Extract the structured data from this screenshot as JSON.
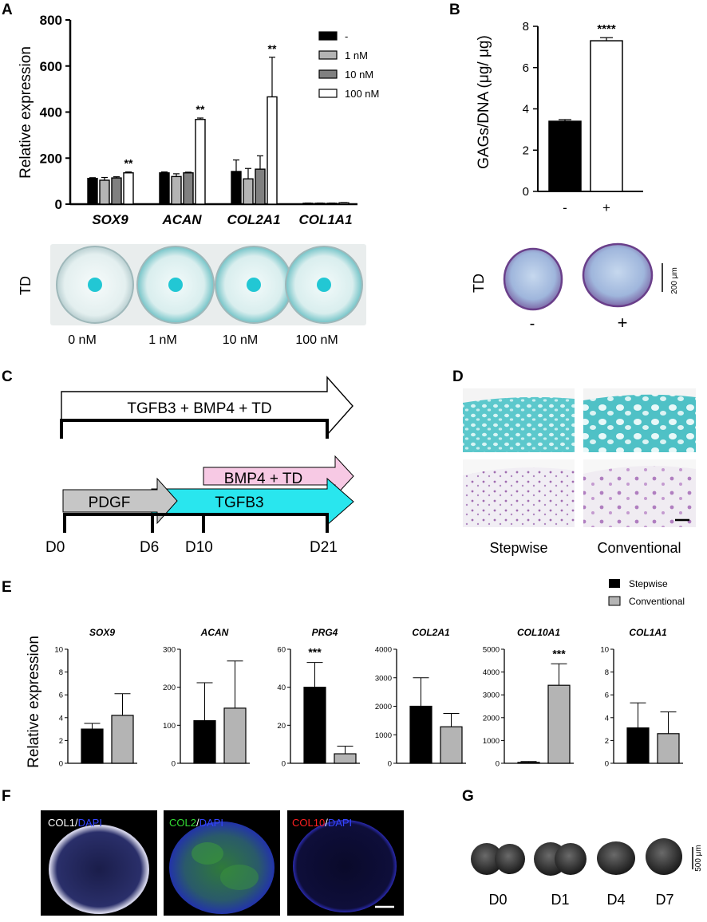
{
  "panel_letters": {
    "a": "A",
    "b": "B",
    "c": "C",
    "d": "D",
    "e": "E",
    "f": "F",
    "g": "G"
  },
  "colors": {
    "black": "#000000",
    "light_gray": "#b4b4b4",
    "dark_gray": "#808080",
    "white": "#ffffff",
    "alcian_blue": "#5cc8cc",
    "cyan_arrow": "#29e6ee",
    "pink_arrow": "#f7c9e4",
    "gray_arrow": "#c6c6c6",
    "col1_stain": "#e6e6f0",
    "col2_stain": "#3aa83a",
    "col10_stain": "#2a2ab0",
    "dapi": "#2233cc"
  },
  "chart_data": [
    {
      "id": "A",
      "type": "bar",
      "ylabel": "Relative expression",
      "ylim": [
        0,
        800
      ],
      "yticks": [
        "0",
        "200",
        "400",
        "600",
        "800"
      ],
      "categories": [
        "SOX9",
        "ACAN",
        "COL2A1",
        "COL1A1"
      ],
      "series": [
        {
          "name": "-",
          "color": "#000000",
          "values": [
            112,
            136,
            142,
            4
          ],
          "errors": [
            3,
            4,
            50,
            1
          ]
        },
        {
          "name": "1 nM",
          "color": "#b4b4b4",
          "values": [
            104,
            120,
            110,
            4
          ],
          "errors": [
            12,
            12,
            45,
            1
          ]
        },
        {
          "name": "10 nM",
          "color": "#808080",
          "values": [
            114,
            136,
            152,
            4
          ],
          "errors": [
            5,
            3,
            58,
            1
          ]
        },
        {
          "name": "100 nM",
          "color": "#ffffff",
          "values": [
            136,
            368,
            466,
            6
          ],
          "errors": [
            4,
            6,
            172,
            1
          ]
        }
      ],
      "annotations": [
        "**",
        "**",
        "**",
        ""
      ],
      "legend": "top-right"
    },
    {
      "id": "B",
      "type": "bar",
      "ylabel": "GAGs/DNA (μg/ μg)",
      "ylim": [
        0,
        8
      ],
      "yticks": [
        "0",
        "2",
        "4",
        "6",
        "8"
      ],
      "categories": [
        "-",
        "+"
      ],
      "series": [
        {
          "values": [
            3.4,
            7.3
          ],
          "errors": [
            0.08,
            0.15
          ],
          "colors": [
            "#000000",
            "#ffffff"
          ]
        }
      ],
      "annotations": [
        "",
        "****"
      ]
    },
    {
      "id": "E-SOX9",
      "type": "bar",
      "title": "SOX9",
      "ylim": [
        0,
        10
      ],
      "yticks": [
        "0",
        "2",
        "4",
        "6",
        "8",
        "10"
      ],
      "categories": [
        "Stepwise",
        "Conventional"
      ],
      "series": [
        {
          "values": [
            3.0,
            4.2
          ],
          "errors": [
            0.5,
            1.9
          ],
          "colors": [
            "#000000",
            "#b4b4b4"
          ]
        }
      ],
      "annotation": ""
    },
    {
      "id": "E-ACAN",
      "type": "bar",
      "title": "ACAN",
      "ylim": [
        0,
        300
      ],
      "yticks": [
        "0",
        "100",
        "200",
        "300"
      ],
      "categories": [
        "Stepwise",
        "Conventional"
      ],
      "series": [
        {
          "values": [
            112,
            145
          ],
          "errors": [
            100,
            124
          ],
          "colors": [
            "#000000",
            "#b4b4b4"
          ]
        }
      ],
      "annotation": ""
    },
    {
      "id": "E-PRG4",
      "type": "bar",
      "title": "PRG4",
      "ylim": [
        0,
        60
      ],
      "yticks": [
        "0",
        "20",
        "40",
        "60"
      ],
      "categories": [
        "Stepwise",
        "Conventional"
      ],
      "series": [
        {
          "values": [
            40,
            5
          ],
          "errors": [
            13,
            4
          ],
          "colors": [
            "#000000",
            "#b4b4b4"
          ]
        }
      ],
      "annotation": "***",
      "annotation_bar": 0
    },
    {
      "id": "E-COL2A1",
      "type": "bar",
      "title": "COL2A1",
      "ylim": [
        0,
        4000
      ],
      "yticks": [
        "0",
        "1000",
        "2000",
        "3000",
        "4000"
      ],
      "categories": [
        "Stepwise",
        "Conventional"
      ],
      "series": [
        {
          "values": [
            2000,
            1280
          ],
          "errors": [
            1000,
            470
          ],
          "colors": [
            "#000000",
            "#b4b4b4"
          ]
        }
      ],
      "annotation": ""
    },
    {
      "id": "E-COL10A1",
      "type": "bar",
      "title": "COL10A1",
      "ylim": [
        0,
        5000
      ],
      "yticks": [
        "0",
        "1000",
        "2000",
        "3000",
        "4000",
        "5000"
      ],
      "categories": [
        "Stepwise",
        "Conventional"
      ],
      "series": [
        {
          "values": [
            40,
            3420
          ],
          "errors": [
            40,
            940
          ],
          "colors": [
            "#000000",
            "#b4b4b4"
          ]
        }
      ],
      "annotation": "***",
      "annotation_bar": 1
    },
    {
      "id": "E-COL1A1",
      "type": "bar",
      "title": "COL1A1",
      "ylim": [
        0,
        10
      ],
      "yticks": [
        "0",
        "2",
        "4",
        "6",
        "8",
        "10"
      ],
      "categories": [
        "Stepwise",
        "Conventional"
      ],
      "series": [
        {
          "values": [
            3.1,
            2.6
          ],
          "errors": [
            2.2,
            1.9
          ],
          "colors": [
            "#000000",
            "#b4b4b4"
          ]
        }
      ],
      "annotation": ""
    }
  ],
  "panel_a": {
    "td_label": "TD",
    "well_labels": [
      "0 nM",
      "1 nM",
      "10 nM",
      "100  nM"
    ]
  },
  "panel_b": {
    "td_label": "TD",
    "scale_label": "200 μm",
    "pellet_labels": [
      "-",
      "+"
    ]
  },
  "panel_c": {
    "top_arrow": "TGFB3 + BMP4 + TD",
    "pdgf": "PDGF",
    "tgfb3": "TGFB3",
    "bmp4_td": "BMP4 + TD",
    "days": [
      "D0",
      "D6",
      "D10",
      "D21"
    ]
  },
  "panel_d": {
    "labels": [
      "Stepwise",
      "Conventional"
    ]
  },
  "panel_e": {
    "ylabel": "Relative expression",
    "legend": [
      "Stepwise",
      "Conventional"
    ]
  },
  "panel_f": {
    "images": [
      {
        "a": "COL1",
        "b": "DAPI",
        "a_color": "#ffffff"
      },
      {
        "a": "COL2",
        "b": "DAPI",
        "a_color": "#33dd33"
      },
      {
        "a": "COL10",
        "b": "DAPI",
        "a_color": "#ff2020"
      }
    ],
    "sep": "/"
  },
  "panel_g": {
    "scale_label": "500 μm",
    "labels": [
      "D0",
      "D1",
      "D4",
      "D7"
    ]
  }
}
